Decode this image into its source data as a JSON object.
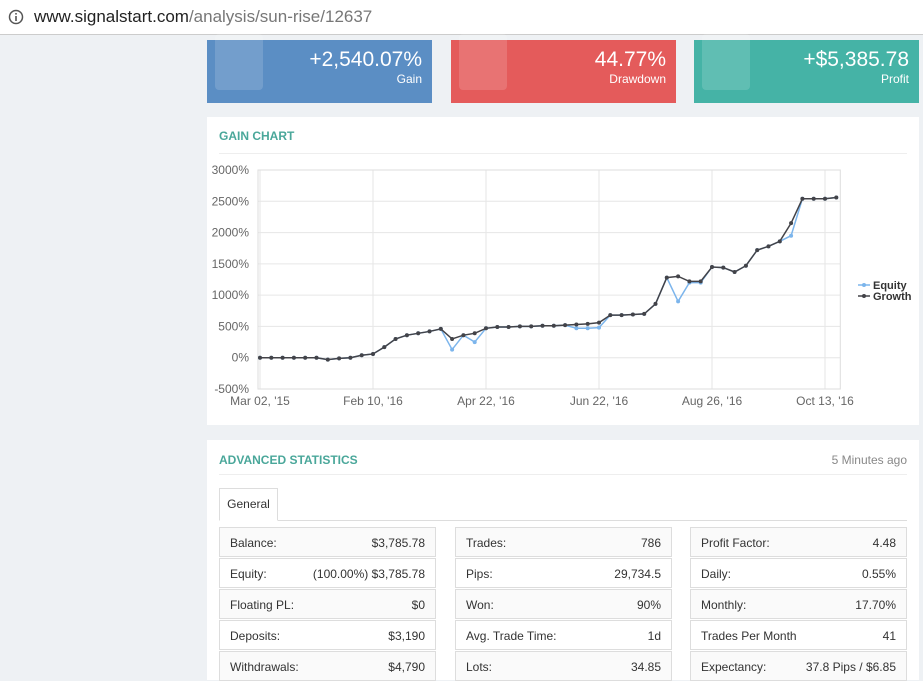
{
  "address_bar": {
    "url_host": "www.signalstart.com",
    "url_path": "/analysis/sun-rise/12637"
  },
  "cards": [
    {
      "value": "+2,540.07%",
      "label": "Gain",
      "color": "#5b8ec4"
    },
    {
      "value": "44.77%",
      "label": "Drawdown",
      "color": "#e45b5b"
    },
    {
      "value": "+$5,385.78",
      "label": "Profit",
      "color": "#45b3a6"
    }
  ],
  "chart_data": {
    "type": "line",
    "title": "GAIN CHART",
    "categories": [
      "Mar 02, '15",
      null,
      null,
      null,
      null,
      null,
      null,
      null,
      null,
      null,
      "Feb 10, '16",
      null,
      null,
      null,
      null,
      null,
      null,
      null,
      null,
      null,
      "Apr 22, '16",
      null,
      null,
      null,
      null,
      null,
      null,
      null,
      null,
      null,
      "Jun 22, '16",
      null,
      null,
      null,
      null,
      null,
      null,
      null,
      null,
      null,
      "Aug 26, '16",
      null,
      null,
      null,
      null,
      null,
      null,
      null,
      null,
      null,
      "Oct 13, '16",
      null
    ],
    "series": [
      {
        "name": "Equity",
        "color": "#7cb5ec",
        "values": [
          0,
          0,
          0,
          0,
          0,
          0,
          -30,
          -10,
          0,
          40,
          60,
          170,
          300,
          360,
          390,
          420,
          460,
          130,
          360,
          250,
          470,
          490,
          490,
          500,
          500,
          510,
          510,
          520,
          470,
          470,
          480,
          680,
          680,
          690,
          700,
          860,
          1280,
          900,
          1200,
          1200,
          1450,
          1440,
          1370,
          1470,
          1720,
          1780,
          1860,
          1950,
          2540,
          2540,
          2540,
          2560
        ]
      },
      {
        "name": "Growth",
        "color": "#434348",
        "values": [
          0,
          0,
          0,
          0,
          0,
          0,
          -30,
          -10,
          0,
          40,
          60,
          170,
          300,
          360,
          390,
          420,
          460,
          300,
          360,
          390,
          470,
          490,
          490,
          500,
          500,
          510,
          510,
          520,
          530,
          540,
          560,
          680,
          680,
          690,
          700,
          860,
          1280,
          1300,
          1220,
          1220,
          1450,
          1440,
          1370,
          1470,
          1720,
          1780,
          1860,
          2150,
          2540,
          2540,
          2540,
          2560
        ]
      }
    ],
    "ylim": [
      -500,
      3000
    ],
    "yticks": [
      {
        "value": -500,
        "label": "-500%"
      },
      {
        "value": 0,
        "label": "0%"
      },
      {
        "value": 500,
        "label": "500%"
      },
      {
        "value": 1000,
        "label": "1000%"
      },
      {
        "value": 1500,
        "label": "1500%"
      },
      {
        "value": 2000,
        "label": "2000%"
      },
      {
        "value": 2500,
        "label": "2500%"
      },
      {
        "value": 3000,
        "label": "3000%"
      }
    ],
    "grid": true,
    "legend": "right"
  },
  "statistics": {
    "title": "ADVANCED STATISTICS",
    "updated": "5 Minutes ago",
    "tab": "General",
    "columns": [
      [
        {
          "label": "Balance:",
          "value": "$3,785.78"
        },
        {
          "label": "Equity:",
          "value": "(100.00%) $3,785.78"
        },
        {
          "label": "Floating PL:",
          "value": "$0"
        },
        {
          "label": "Deposits:",
          "value": "$3,190"
        },
        {
          "label": "Withdrawals:",
          "value": "$4,790"
        }
      ],
      [
        {
          "label": "Trades:",
          "value": "786"
        },
        {
          "label": "Pips:",
          "value": "29,734.5"
        },
        {
          "label": "Won:",
          "value": "90%"
        },
        {
          "label": "Avg. Trade Time:",
          "value": "1d"
        },
        {
          "label": "Lots:",
          "value": "34.85"
        }
      ],
      [
        {
          "label": "Profit Factor:",
          "value": "4.48"
        },
        {
          "label": "Daily:",
          "value": "0.55%"
        },
        {
          "label": "Monthly:",
          "value": "17.70%"
        },
        {
          "label": "Trades Per Month",
          "value": "41"
        },
        {
          "label": "Expectancy:",
          "value": "37.8 Pips / $6.85"
        }
      ]
    ]
  }
}
